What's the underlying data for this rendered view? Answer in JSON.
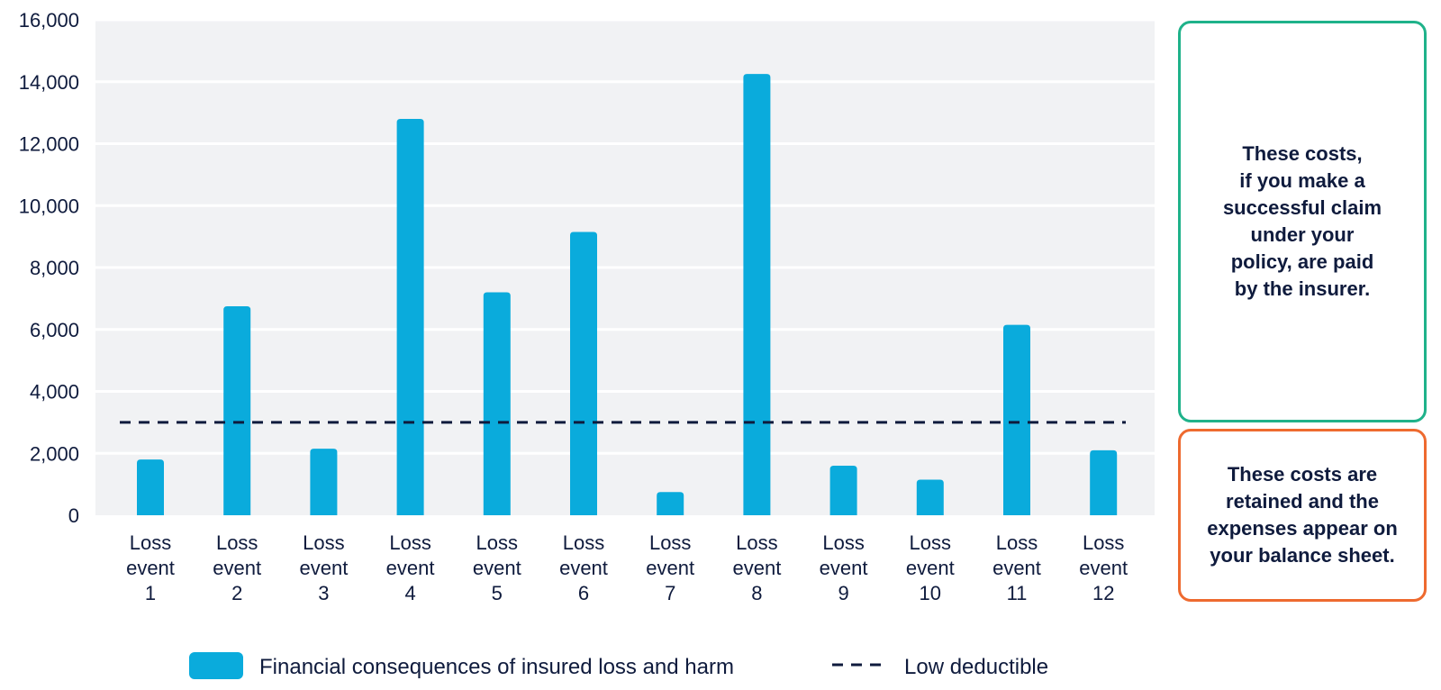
{
  "chart_data": {
    "type": "bar",
    "categories": [
      [
        "Loss",
        "event",
        "1"
      ],
      [
        "Loss",
        "event",
        "2"
      ],
      [
        "Loss",
        "event",
        "3"
      ],
      [
        "Loss",
        "event",
        "4"
      ],
      [
        "Loss",
        "event",
        "5"
      ],
      [
        "Loss",
        "event",
        "6"
      ],
      [
        "Loss",
        "event",
        "7"
      ],
      [
        "Loss",
        "event",
        "8"
      ],
      [
        "Loss",
        "event",
        "9"
      ],
      [
        "Loss",
        "event",
        "10"
      ],
      [
        "Loss",
        "event",
        "11"
      ],
      [
        "Loss",
        "event",
        "12"
      ]
    ],
    "series": [
      {
        "name": "Financial consequences of insured loss and harm",
        "values": [
          1800,
          6750,
          2150,
          12800,
          7200,
          9150,
          750,
          14250,
          1600,
          1150,
          6150,
          2100
        ],
        "color": "#0aabdc"
      }
    ],
    "reference_line": {
      "name": "Low deductible",
      "value": 3000,
      "color": "#0f1b3d",
      "style": "dashed"
    },
    "ylim": [
      0,
      16000
    ],
    "yticks": [
      0,
      2000,
      4000,
      6000,
      8000,
      10000,
      12000,
      14000,
      16000
    ],
    "ytick_labels": [
      "0",
      "2,000",
      "4,000",
      "6,000",
      "8,000",
      "10,000",
      "12,000",
      "14,000",
      "16,000"
    ],
    "title": "",
    "xlabel": "",
    "ylabel": "",
    "grid": true,
    "plot_background": "#f1f2f4",
    "legend_position": "bottom"
  },
  "legend": {
    "bar_label": "Financial consequences of insured loss and harm",
    "line_label": "Low deductible"
  },
  "callouts": {
    "insured": {
      "text": "These costs,\nif you make a\nsuccessful claim\nunder your\npolicy, are paid\nby the insurer.",
      "border_color": "#1fb28a"
    },
    "retained": {
      "text": "These costs are\nretained and the\nexpenses appear on\nyour balance sheet.",
      "border_color": "#ee6a2f"
    }
  }
}
